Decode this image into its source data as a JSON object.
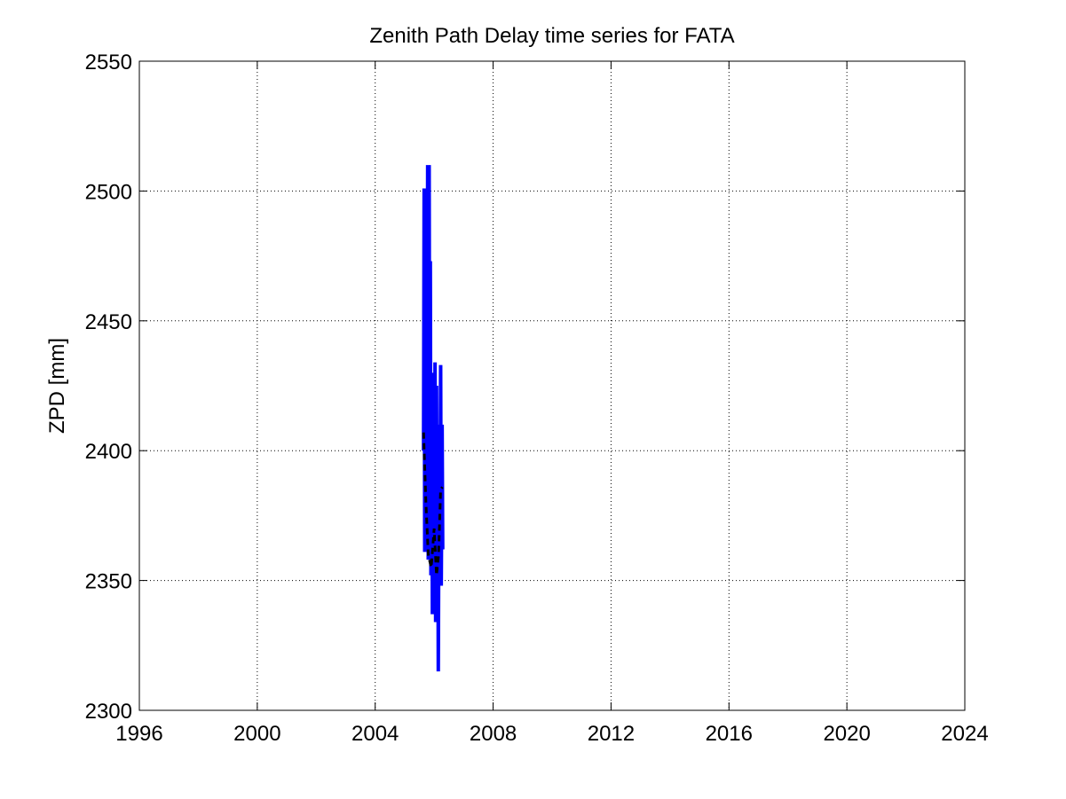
{
  "chart_data": {
    "type": "line",
    "title": "Zenith Path Delay time series for FATA",
    "y_label": "ZPD [mm]",
    "xlim": [
      1996,
      2024
    ],
    "xticks": [
      1996,
      2000,
      2004,
      2008,
      2012,
      2016,
      2020,
      2024
    ],
    "ylim": [
      2300,
      2550
    ],
    "yticks": [
      2300,
      2350,
      2400,
      2450,
      2500,
      2550
    ],
    "grid": true,
    "series": [
      {
        "color": "#0000ff",
        "line_style": "solid",
        "x": [
          2005.64,
          2005.66,
          2005.68,
          2005.72,
          2005.75,
          2005.78,
          2005.8,
          2005.83,
          2005.85,
          2005.87,
          2005.89,
          2005.92,
          2005.94,
          2005.97,
          2006.0,
          2006.03,
          2006.05,
          2006.08,
          2006.1,
          2006.12,
          2006.14,
          2006.17,
          2006.19,
          2006.22,
          2006.24,
          2006.27,
          2006.29
        ],
        "values": [
          2400,
          2501,
          2361,
          2480,
          2365,
          2510,
          2358,
          2510,
          2370,
          2473,
          2352,
          2430,
          2337,
          2420,
          2345,
          2434,
          2334,
          2425,
          2340,
          2410,
          2315,
          2405,
          2350,
          2433,
          2348,
          2410,
          2362
        ]
      },
      {
        "color": "#000000",
        "line_style": "dashed",
        "x": [
          2005.64,
          2005.72,
          2005.8,
          2005.9,
          2006.0,
          2006.08,
          2006.15,
          2006.22,
          2006.28
        ],
        "values": [
          2407,
          2380,
          2360,
          2355,
          2370,
          2352,
          2360,
          2385,
          2386
        ]
      }
    ]
  }
}
